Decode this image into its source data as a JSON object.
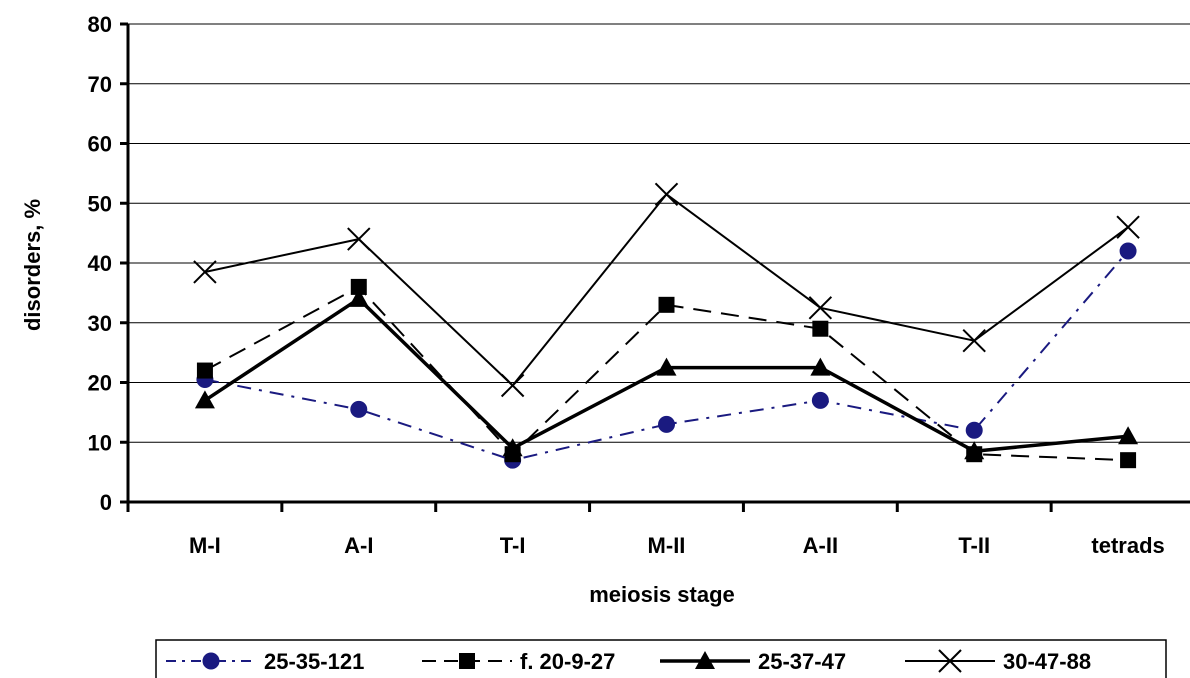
{
  "chart_data": {
    "type": "line",
    "xlabel": "meiosis stage",
    "ylabel": "disorders, %",
    "ylim": [
      0,
      80
    ],
    "yticks": [
      0,
      10,
      20,
      30,
      40,
      50,
      60,
      70,
      80
    ],
    "categories": [
      "M-I",
      "A-I",
      "T-I",
      "M-II",
      "A-II",
      "T-II",
      "tetrads"
    ],
    "grid": "horizontal",
    "legend_position": "bottom",
    "series": [
      {
        "name": "25-35-121",
        "values": [
          20.5,
          15.5,
          7,
          13,
          17,
          12,
          42
        ],
        "color": "#1a1a80",
        "dash": "dash-dot",
        "marker": "circle"
      },
      {
        "name": "f. 20-9-27",
        "values": [
          22,
          36,
          8,
          33,
          29,
          8,
          7
        ],
        "color": "#000000",
        "dash": "dashed",
        "marker": "square"
      },
      {
        "name": "25-37-47",
        "values": [
          17,
          34,
          9,
          22.5,
          22.5,
          8.5,
          11
        ],
        "color": "#000000",
        "dash": "solid-thick",
        "marker": "triangle"
      },
      {
        "name": "30-47-88",
        "values": [
          38.5,
          44,
          19.5,
          51.5,
          32.5,
          27,
          46
        ],
        "color": "#000000",
        "dash": "solid",
        "marker": "x"
      }
    ]
  }
}
